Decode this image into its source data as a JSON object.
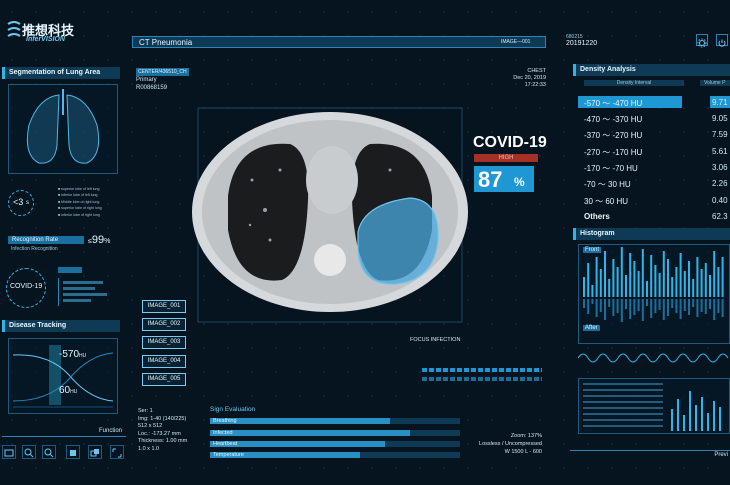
{
  "brand": {
    "cn": "推想科技",
    "en": "InferVISION"
  },
  "header": {
    "title": "CT Pneumonia",
    "image_tag": "IMAGE—001",
    "code": "680215",
    "date": "20191220"
  },
  "scan_info": {
    "center": "CENTER/436510_CH",
    "type": "Primary",
    "id": "R00868159"
  },
  "scan_meta": {
    "region": "CHEST",
    "date": "Dec 20, 2019",
    "time": "17:22:33"
  },
  "diagnosis": {
    "name": "COVID-19",
    "level": "HIGH",
    "probability": "87",
    "unit": "%"
  },
  "left_panel": {
    "segmentation_title": "Segmentation of Lung Area",
    "timer_value": "<3",
    "timer_unit": "s",
    "legend": [
      "superior lobe of left lung",
      "inferior lobe of left lung",
      "Middle lobe of right lung",
      "superior lobe of right lung",
      "inferior lobe of right lung"
    ],
    "recognition_label": "Recognition Rate",
    "recognition_sub": "Infection Recognition",
    "recognition_value": "99",
    "recognition_unit": "%",
    "covid_label": "COVID-19",
    "disease_tracking_title": "Disease Tracking",
    "track_high": "-570",
    "track_high_unit": "HU",
    "track_low": "60",
    "track_low_unit": "HU",
    "function_label": "Function"
  },
  "images": [
    "IMAGE_001",
    "IMAGE_002",
    "IMAGE_003",
    "IMAGE_004",
    "IMAGE_005"
  ],
  "focus_label": "FOCUS INFECTION",
  "bottom_info": {
    "series": "Ser: 1",
    "img": "Img: 1-40 (140/225)",
    "matrix": "512 x 512",
    "loc": "Loc.: -173.27 mm",
    "thickness": "Thickness: 1.00 mm",
    "scale": "1.0 x 1.0"
  },
  "sign_evaluation": {
    "title": "Sign Evaluation",
    "items": [
      {
        "label": "Breathing",
        "level": 0.72
      },
      {
        "label": "Infected",
        "level": 0.8
      },
      {
        "label": "Heartbeat",
        "level": 0.7
      },
      {
        "label": "Temperature",
        "level": 0.6
      }
    ]
  },
  "zoom_info": {
    "zoom": "Zoom: 137%",
    "compression": "Lossless / Uncompressed",
    "window": "W 1500 L - 600"
  },
  "density": {
    "title": "Density Analysis",
    "col1": "Density Interval",
    "col2": "Volume P",
    "rows": [
      {
        "range": "-570 ～ -470 HU",
        "value": "9.71"
      },
      {
        "range": "-470 ～ -370 HU",
        "value": "9.05"
      },
      {
        "range": "-370 ～ -270 HU",
        "value": "7.59"
      },
      {
        "range": "-270 ～ -170 HU",
        "value": "5.61"
      },
      {
        "range": "-170 ～ -70 HU",
        "value": "3.06"
      },
      {
        "range": "-70 ～ 30 HU",
        "value": "2.26"
      },
      {
        "range": "30 ～ 60 HU",
        "value": "0.40"
      },
      {
        "range": "Others",
        "value": "62.3"
      }
    ]
  },
  "histogram": {
    "title": "Histogram",
    "front": "Front",
    "after": "After"
  },
  "preview_label": "Previ",
  "colors": {
    "accent": "#2fb6e6",
    "infection": "#4aa8de",
    "high": "#c0392b"
  }
}
